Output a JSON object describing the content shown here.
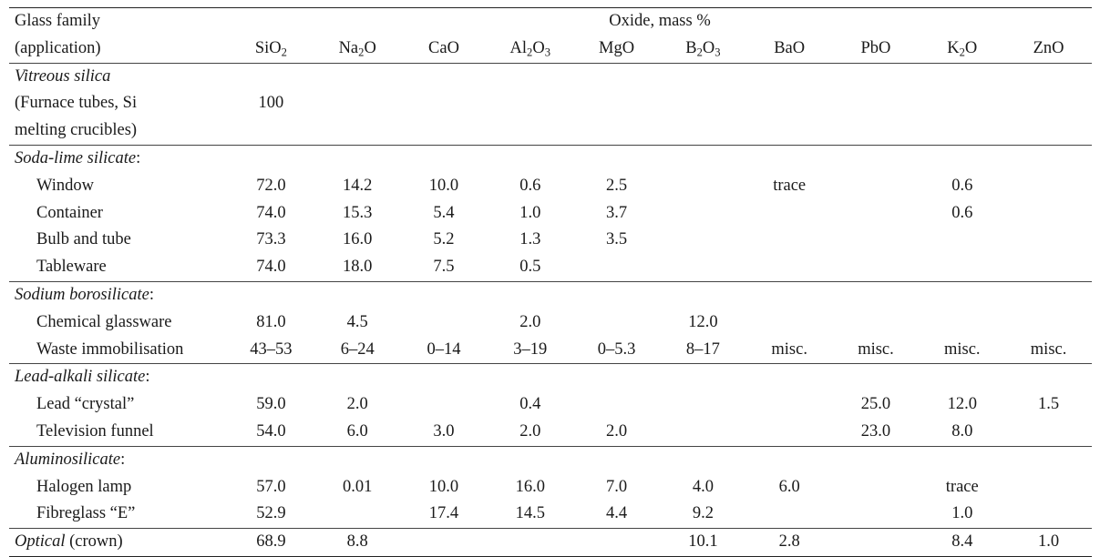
{
  "header": {
    "family_line1": "Glass family",
    "family_line2": "(application)",
    "oxide_title": "Oxide, mass %",
    "oxides": [
      {
        "base": "SiO",
        "sub": "2"
      },
      {
        "base": "Na",
        "sub": "2",
        "rest": "O"
      },
      {
        "base": "CaO"
      },
      {
        "base": "Al",
        "sub": "2",
        "rest": "O",
        "sub2": "3"
      },
      {
        "base": "MgO"
      },
      {
        "base": "B",
        "sub": "2",
        "rest": "O",
        "sub2": "3"
      },
      {
        "base": "BaO"
      },
      {
        "base": "PbO"
      },
      {
        "base": "K",
        "sub": "2",
        "rest": "O"
      },
      {
        "base": "ZnO"
      }
    ]
  },
  "groups": [
    {
      "label": "Vitreous silica",
      "label_suffix": "",
      "rows": [
        {
          "label": "(Furnace tubes, Si",
          "indent": false,
          "values": [
            "100",
            "",
            "",
            "",
            "",
            "",
            "",
            "",
            "",
            ""
          ]
        },
        {
          "label": "melting crucibles)",
          "indent": false,
          "values": [
            "",
            "",
            "",
            "",
            "",
            "",
            "",
            "",
            "",
            ""
          ]
        }
      ]
    },
    {
      "label": "Soda-lime silicate",
      "label_suffix": ":",
      "rows": [
        {
          "label": "Window",
          "indent": true,
          "values": [
            "72.0",
            "14.2",
            "10.0",
            "0.6",
            "2.5",
            "",
            "trace",
            "",
            "0.6",
            ""
          ]
        },
        {
          "label": "Container",
          "indent": true,
          "values": [
            "74.0",
            "15.3",
            "5.4",
            "1.0",
            "3.7",
            "",
            "",
            "",
            "0.6",
            ""
          ]
        },
        {
          "label": "Bulb and tube",
          "indent": true,
          "values": [
            "73.3",
            "16.0",
            "5.2",
            "1.3",
            "3.5",
            "",
            "",
            "",
            "",
            ""
          ]
        },
        {
          "label": "Tableware",
          "indent": true,
          "values": [
            "74.0",
            "18.0",
            "7.5",
            "0.5",
            "",
            "",
            "",
            "",
            "",
            ""
          ]
        }
      ]
    },
    {
      "label": "Sodium borosilicate",
      "label_suffix": ":",
      "rows": [
        {
          "label": "Chemical glassware",
          "indent": true,
          "values": [
            "81.0",
            "4.5",
            "",
            "2.0",
            "",
            "12.0",
            "",
            "",
            "",
            ""
          ]
        },
        {
          "label": "Waste immobilisation",
          "indent": true,
          "values": [
            "43–53",
            "6–24",
            "0–14",
            "3–19",
            "0–5.3",
            "8–17",
            "misc.",
            "misc.",
            "misc.",
            "misc."
          ]
        }
      ]
    },
    {
      "label": "Lead-alkali silicate",
      "label_suffix": ":",
      "rows": [
        {
          "label": "Lead “crystal”",
          "indent": true,
          "values": [
            "59.0",
            "2.0",
            "",
            "0.4",
            "",
            "",
            "",
            "25.0",
            "12.0",
            "1.5"
          ]
        },
        {
          "label": "Television funnel",
          "indent": true,
          "values": [
            "54.0",
            "6.0",
            "3.0",
            "2.0",
            "2.0",
            "",
            "",
            "23.0",
            "8.0",
            ""
          ]
        }
      ]
    },
    {
      "label": "Aluminosilicate",
      "label_suffix": ":",
      "rows": [
        {
          "label": "Halogen lamp",
          "indent": true,
          "values": [
            "57.0",
            "0.01",
            "10.0",
            "16.0",
            "7.0",
            "4.0",
            "6.0",
            "",
            "trace",
            ""
          ]
        },
        {
          "label": "Fibreglass “E”",
          "indent": true,
          "values": [
            "52.9",
            "",
            "17.4",
            "14.5",
            "4.4",
            "9.2",
            "",
            "",
            "1.0",
            ""
          ]
        }
      ]
    }
  ],
  "final_row": {
    "label": "Optical",
    "label_suffix": " (crown)",
    "values": [
      "68.9",
      "8.8",
      "",
      "",
      "",
      "10.1",
      "2.8",
      "",
      "8.4",
      "1.0"
    ]
  }
}
